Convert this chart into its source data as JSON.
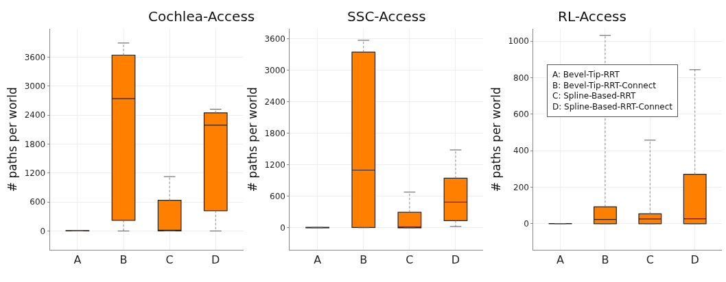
{
  "chart_data": [
    {
      "type": "box",
      "title": "Cochlea-Access",
      "ylabel": "# paths per world",
      "categories": [
        "A",
        "B",
        "C",
        "D"
      ],
      "color": "#ff7f00",
      "boxes": [
        {
          "low": 0,
          "q1": 0,
          "median": 0,
          "q3": 8,
          "high": 8
        },
        {
          "low": 0,
          "q1": 220,
          "median": 2740,
          "q3": 3640,
          "high": 3890
        },
        {
          "low": 0,
          "q1": 0,
          "median": 15,
          "q3": 635,
          "high": 1125
        },
        {
          "low": 0,
          "q1": 420,
          "median": 2190,
          "q3": 2445,
          "high": 2520
        }
      ],
      "ylim": [
        -390,
        4180
      ],
      "yticks": [
        0,
        600,
        1200,
        1800,
        2400,
        3000,
        3600
      ],
      "grid": true
    },
    {
      "type": "box",
      "title": "SSC-Access",
      "ylabel": "# paths per world",
      "categories": [
        "A",
        "B",
        "C",
        "D"
      ],
      "color": "#ff7f00",
      "boxes": [
        {
          "low": 0,
          "q1": 0,
          "median": 0,
          "q3": 8,
          "high": 8
        },
        {
          "low": 0,
          "q1": 5,
          "median": 1100,
          "q3": 3350,
          "high": 3575
        },
        {
          "low": 0,
          "q1": 0,
          "median": 15,
          "q3": 295,
          "high": 680
        },
        {
          "low": 25,
          "q1": 135,
          "median": 490,
          "q3": 945,
          "high": 1485
        }
      ],
      "ylim": [
        -420,
        3790
      ],
      "yticks": [
        0,
        600,
        1200,
        1800,
        2400,
        3000,
        3600
      ],
      "grid": true
    },
    {
      "type": "box",
      "title": "RL-Access",
      "ylabel": "# paths per world",
      "categories": [
        "A",
        "B",
        "C",
        "D"
      ],
      "color": "#ff7f00",
      "boxes": [
        {
          "low": 0,
          "q1": 0,
          "median": 1,
          "q3": 1,
          "high": 1
        },
        {
          "low": 0,
          "q1": 0,
          "median": 23,
          "q3": 93,
          "high": 1032
        },
        {
          "low": 0,
          "q1": 0,
          "median": 26,
          "q3": 54,
          "high": 458
        },
        {
          "low": 0,
          "q1": 0,
          "median": 27,
          "q3": 271,
          "high": 844
        }
      ],
      "ylim": [
        -143,
        1067
      ],
      "yticks": [
        0,
        200,
        400,
        600,
        800,
        1000
      ],
      "grid": true,
      "annotations": [
        "A: Bevel-Tip-RRT\nB: Bevel-Tip-RRT-Connect\nC: Spline-Based-RRT\nD: Spline-Based-RRT-Connect"
      ]
    }
  ]
}
